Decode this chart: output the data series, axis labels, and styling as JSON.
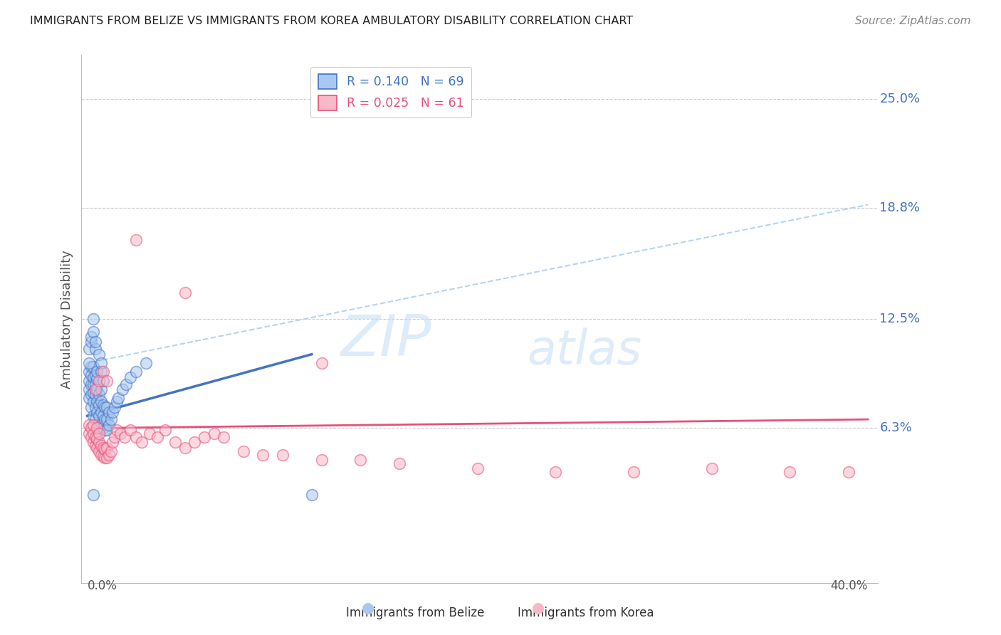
{
  "title": "IMMIGRANTS FROM BELIZE VS IMMIGRANTS FROM KOREA AMBULATORY DISABILITY CORRELATION CHART",
  "source": "Source: ZipAtlas.com",
  "ylabel": "Ambulatory Disability",
  "ytick_labels": [
    "6.3%",
    "12.5%",
    "18.8%",
    "25.0%"
  ],
  "ytick_values": [
    0.063,
    0.125,
    0.188,
    0.25
  ],
  "xlim": [
    0.0,
    0.4
  ],
  "ylim": [
    -0.025,
    0.275
  ],
  "legend_belize": "R = 0.140   N = 69",
  "legend_korea": "R = 0.025   N = 61",
  "color_belize": "#a8c8f0",
  "color_korea": "#f8b8c8",
  "color_belize_line": "#4472c4",
  "color_korea_line": "#e8507a",
  "color_dashed": "#b8d4f0",
  "watermark_1": "ZIP",
  "watermark_2": "atlas",
  "belize_x": [
    0.001,
    0.001,
    0.001,
    0.001,
    0.002,
    0.002,
    0.002,
    0.002,
    0.002,
    0.003,
    0.003,
    0.003,
    0.003,
    0.003,
    0.003,
    0.004,
    0.004,
    0.004,
    0.004,
    0.004,
    0.005,
    0.005,
    0.005,
    0.005,
    0.005,
    0.006,
    0.006,
    0.006,
    0.006,
    0.007,
    0.007,
    0.007,
    0.007,
    0.008,
    0.008,
    0.008,
    0.009,
    0.009,
    0.009,
    0.01,
    0.01,
    0.01,
    0.011,
    0.011,
    0.012,
    0.013,
    0.014,
    0.015,
    0.016,
    0.018,
    0.02,
    0.022,
    0.025,
    0.03,
    0.001,
    0.001,
    0.002,
    0.002,
    0.003,
    0.003,
    0.004,
    0.004,
    0.005,
    0.006,
    0.007,
    0.007,
    0.008,
    0.003,
    0.115
  ],
  "belize_y": [
    0.08,
    0.085,
    0.09,
    0.095,
    0.075,
    0.082,
    0.088,
    0.093,
    0.098,
    0.07,
    0.078,
    0.083,
    0.088,
    0.092,
    0.098,
    0.068,
    0.075,
    0.082,
    0.088,
    0.093,
    0.065,
    0.072,
    0.078,
    0.085,
    0.091,
    0.063,
    0.07,
    0.076,
    0.082,
    0.065,
    0.072,
    0.078,
    0.085,
    0.063,
    0.07,
    0.076,
    0.062,
    0.068,
    0.075,
    0.062,
    0.068,
    0.075,
    0.065,
    0.072,
    0.068,
    0.072,
    0.075,
    0.078,
    0.08,
    0.085,
    0.088,
    0.092,
    0.095,
    0.1,
    0.1,
    0.108,
    0.112,
    0.115,
    0.118,
    0.125,
    0.108,
    0.112,
    0.095,
    0.105,
    0.095,
    0.1,
    0.09,
    0.025,
    0.025
  ],
  "korea_x": [
    0.001,
    0.001,
    0.002,
    0.002,
    0.003,
    0.003,
    0.003,
    0.004,
    0.004,
    0.005,
    0.005,
    0.005,
    0.006,
    0.006,
    0.006,
    0.007,
    0.007,
    0.008,
    0.008,
    0.009,
    0.009,
    0.01,
    0.01,
    0.011,
    0.012,
    0.013,
    0.014,
    0.015,
    0.017,
    0.019,
    0.022,
    0.025,
    0.028,
    0.032,
    0.036,
    0.04,
    0.045,
    0.05,
    0.055,
    0.06,
    0.065,
    0.07,
    0.08,
    0.09,
    0.1,
    0.12,
    0.14,
    0.16,
    0.2,
    0.24,
    0.28,
    0.32,
    0.36,
    0.39,
    0.004,
    0.006,
    0.008,
    0.01,
    0.025,
    0.05,
    0.12
  ],
  "korea_y": [
    0.06,
    0.065,
    0.058,
    0.063,
    0.055,
    0.06,
    0.065,
    0.053,
    0.058,
    0.052,
    0.057,
    0.063,
    0.05,
    0.055,
    0.06,
    0.048,
    0.053,
    0.047,
    0.052,
    0.046,
    0.051,
    0.046,
    0.052,
    0.048,
    0.05,
    0.055,
    0.058,
    0.062,
    0.06,
    0.058,
    0.062,
    0.058,
    0.055,
    0.06,
    0.058,
    0.062,
    0.055,
    0.052,
    0.055,
    0.058,
    0.06,
    0.058,
    0.05,
    0.048,
    0.048,
    0.045,
    0.045,
    0.043,
    0.04,
    0.038,
    0.038,
    0.04,
    0.038,
    0.038,
    0.085,
    0.09,
    0.095,
    0.09,
    0.17,
    0.14,
    0.1
  ],
  "belize_line_x": [
    0.0,
    0.115
  ],
  "belize_line_y": [
    0.07,
    0.105
  ],
  "korea_line_x": [
    0.0,
    0.4
  ],
  "korea_line_y": [
    0.063,
    0.068
  ],
  "dashed_line_x": [
    0.0,
    0.4
  ],
  "dashed_line_y": [
    0.1,
    0.19
  ]
}
